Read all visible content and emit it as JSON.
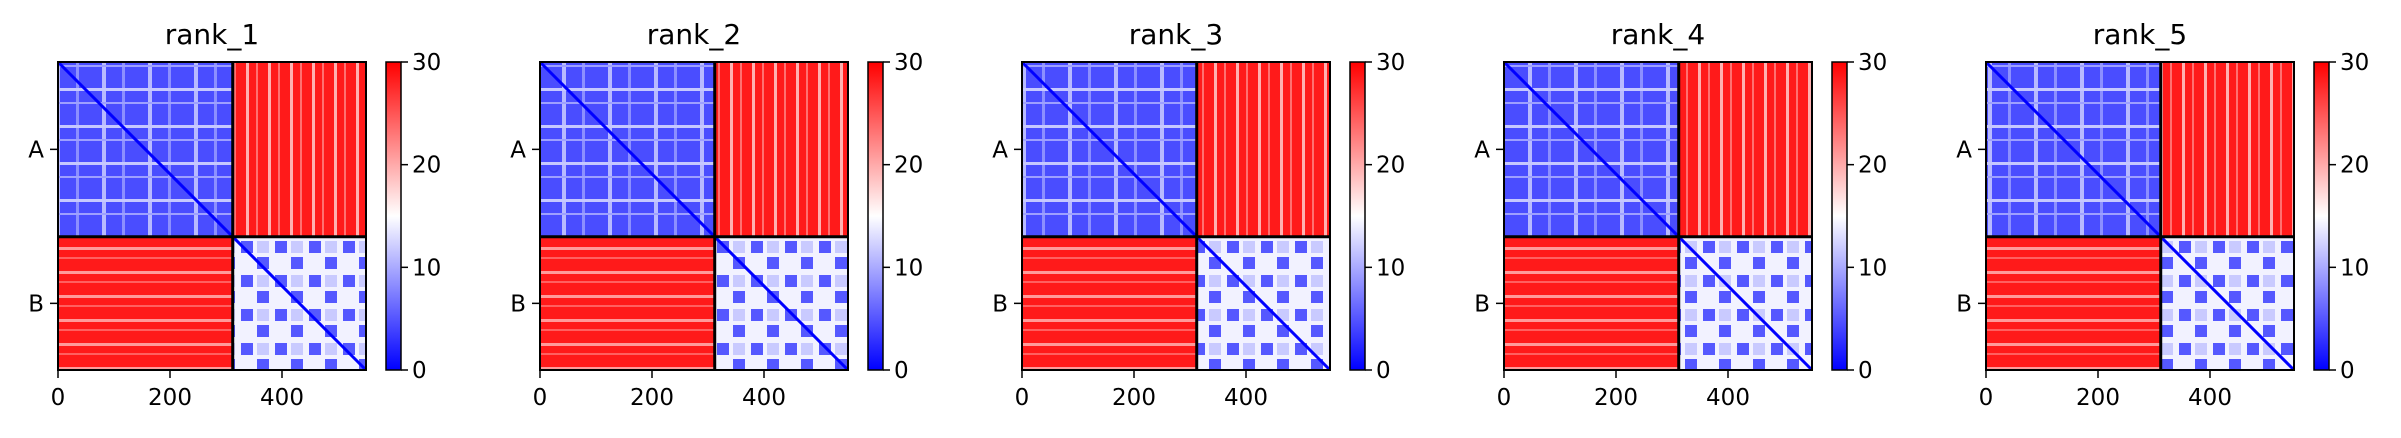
{
  "colormap": {
    "low": "#0000ff",
    "mid": "#ffffff",
    "high": "#ff0000"
  },
  "chart_data": [
    {
      "type": "heatmap",
      "title": "rank_1",
      "x_ticks": [
        0,
        200,
        400
      ],
      "xlim": [
        0,
        550
      ],
      "y_tick_labels": [
        "A",
        "B"
      ],
      "chain_lengths": [
        312,
        238
      ],
      "chain_break": 312,
      "colorbar": {
        "range": [
          0,
          30
        ],
        "ticks": [
          0,
          10,
          20,
          30
        ]
      }
    },
    {
      "type": "heatmap",
      "title": "rank_2",
      "x_ticks": [
        0,
        200,
        400
      ],
      "xlim": [
        0,
        550
      ],
      "y_tick_labels": [
        "A",
        "B"
      ],
      "chain_lengths": [
        312,
        238
      ],
      "chain_break": 312,
      "colorbar": {
        "range": [
          0,
          30
        ],
        "ticks": [
          0,
          10,
          20,
          30
        ]
      }
    },
    {
      "type": "heatmap",
      "title": "rank_3",
      "x_ticks": [
        0,
        200,
        400
      ],
      "xlim": [
        0,
        550
      ],
      "y_tick_labels": [
        "A",
        "B"
      ],
      "chain_lengths": [
        312,
        238
      ],
      "chain_break": 312,
      "colorbar": {
        "range": [
          0,
          30
        ],
        "ticks": [
          0,
          10,
          20,
          30
        ]
      }
    },
    {
      "type": "heatmap",
      "title": "rank_4",
      "x_ticks": [
        0,
        200,
        400
      ],
      "xlim": [
        0,
        550
      ],
      "y_tick_labels": [
        "A",
        "B"
      ],
      "chain_lengths": [
        312,
        238
      ],
      "chain_break": 312,
      "colorbar": {
        "range": [
          0,
          30
        ],
        "ticks": [
          0,
          10,
          20,
          30
        ]
      }
    },
    {
      "type": "heatmap",
      "title": "rank_5",
      "x_ticks": [
        0,
        200,
        400
      ],
      "xlim": [
        0,
        550
      ],
      "y_tick_labels": [
        "A",
        "B"
      ],
      "chain_lengths": [
        312,
        238
      ],
      "chain_break": 312,
      "colorbar": {
        "range": [
          0,
          30
        ],
        "ticks": [
          0,
          10,
          20,
          30
        ]
      }
    }
  ]
}
